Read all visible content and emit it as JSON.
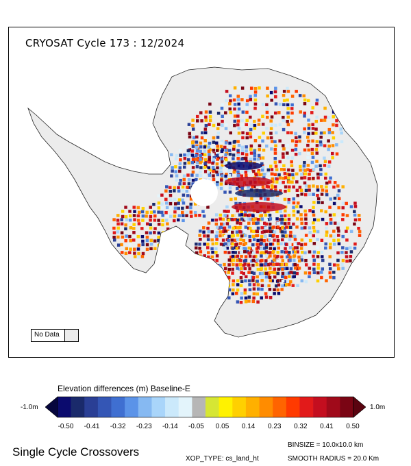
{
  "map": {
    "title": "CRYOSAT Cycle 173 : 12/2024",
    "nodata_label": "No Data"
  },
  "colorbar": {
    "title": "Elevation differences (m) Baseline-E",
    "min_label": "-1.0m",
    "max_label": "1.0m",
    "tick_labels": [
      "-0.50",
      "-0.41",
      "-0.32",
      "-0.23",
      "-0.14",
      "-0.05",
      "0.05",
      "0.14",
      "0.23",
      "0.32",
      "0.41",
      "0.50"
    ],
    "colors": [
      "#0b0b6e",
      "#1a2a6b",
      "#2a3f95",
      "#3456b5",
      "#3f6fd1",
      "#5b93e8",
      "#86b9f2",
      "#a9d5fa",
      "#cbe9fb",
      "#e3f4fb",
      "#b6b6b6",
      "#d6e634",
      "#fff200",
      "#ffd000",
      "#ffb000",
      "#ff8c00",
      "#ff6400",
      "#ff3a00",
      "#e21a1a",
      "#c40e1f",
      "#a00a1a",
      "#7a0514"
    ],
    "under_color": "#06063d",
    "over_color": "#5a0410"
  },
  "footer": {
    "title": "Single Cycle Crossovers",
    "xop_type": "XOP_TYPE: cs_land_ht",
    "binsize": "BINSIZE = 10.0x10.0 km",
    "smooth_radius": "SMOOTH RADIUS = 20.0 Km"
  }
}
